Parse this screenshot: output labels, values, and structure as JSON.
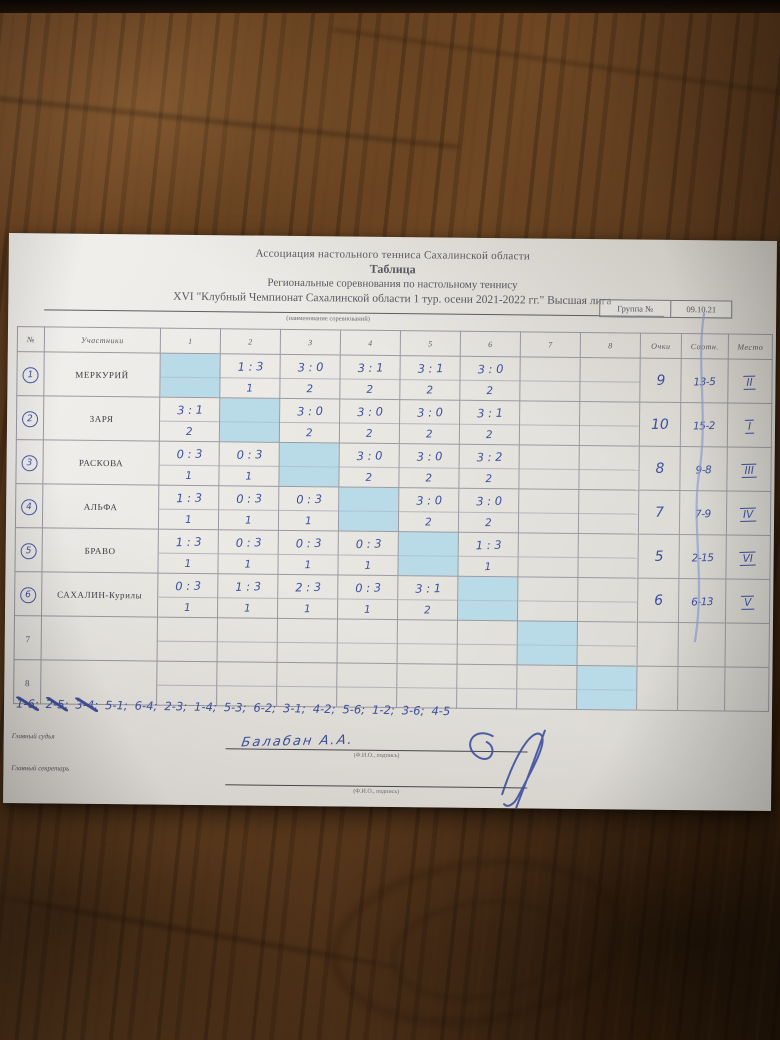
{
  "header": {
    "line1": "Ассоциация настольного тенниса Сахалинской области",
    "line2": "Таблица",
    "line3": "Региональные соревнования по настольному теннису",
    "line4": "XVI \"Клубный Чемпионат Сахалинской области 1 тур. осени 2021-2022 гг.\" Высшая лига",
    "caption": "(наименование соревнований)",
    "group_label": "Группа №",
    "group_value": "09.10.21"
  },
  "table": {
    "col_headers": [
      "№",
      "Участники",
      "1",
      "2",
      "3",
      "4",
      "5",
      "6",
      "7",
      "8",
      "Очки",
      "Соотн.",
      "Место"
    ],
    "rows": [
      {
        "num": "1",
        "circled": true,
        "name": "МЕРКУРИЙ",
        "cells": [
          {
            "diag": true
          },
          {
            "s": "1 : 3",
            "p": "1"
          },
          {
            "s": "3 : 0",
            "p": "2"
          },
          {
            "s": "3 : 1",
            "p": "2"
          },
          {
            "s": "3 : 1",
            "p": "2"
          },
          {
            "s": "3 : 0",
            "p": "2"
          },
          {},
          {}
        ],
        "points": "9",
        "ratio": "13-5",
        "place": "II"
      },
      {
        "num": "2",
        "circled": true,
        "name": "ЗАРЯ",
        "cells": [
          {
            "s": "3 : 1",
            "p": "2"
          },
          {
            "diag": true
          },
          {
            "s": "3 : 0",
            "p": "2"
          },
          {
            "s": "3 : 0",
            "p": "2"
          },
          {
            "s": "3 : 0",
            "p": "2"
          },
          {
            "s": "3 : 1",
            "p": "2"
          },
          {},
          {}
        ],
        "points": "10",
        "ratio": "15-2",
        "place": "I"
      },
      {
        "num": "3",
        "circled": true,
        "name": "РАСКОВА",
        "cells": [
          {
            "s": "0 : 3",
            "p": "1"
          },
          {
            "s": "0 : 3",
            "p": "1"
          },
          {
            "diag": true
          },
          {
            "s": "3 : 0",
            "p": "2"
          },
          {
            "s": "3 : 0",
            "p": "2"
          },
          {
            "s": "3 : 2",
            "p": "2"
          },
          {},
          {}
        ],
        "points": "8",
        "ratio": "9-8",
        "place": "III"
      },
      {
        "num": "4",
        "circled": true,
        "name": "АЛЬФА",
        "cells": [
          {
            "s": "1 : 3",
            "p": "1"
          },
          {
            "s": "0 : 3",
            "p": "1"
          },
          {
            "s": "0 : 3",
            "p": "1"
          },
          {
            "diag": true
          },
          {
            "s": "3 : 0",
            "p": "2"
          },
          {
            "s": "3 : 0",
            "p": "2"
          },
          {},
          {}
        ],
        "points": "7",
        "ratio": "7-9",
        "place": "IV"
      },
      {
        "num": "5",
        "circled": true,
        "name": "БРАВО",
        "cells": [
          {
            "s": "1 : 3",
            "p": "1"
          },
          {
            "s": "0 : 3",
            "p": "1"
          },
          {
            "s": "0 : 3",
            "p": "1"
          },
          {
            "s": "0 : 3",
            "p": "1"
          },
          {
            "diag": true
          },
          {
            "s": "1 : 3",
            "p": "1"
          },
          {},
          {}
        ],
        "points": "5",
        "ratio": "2-15",
        "place": "VI"
      },
      {
        "num": "6",
        "circled": true,
        "name": "САХАЛИН-Курилы",
        "cells": [
          {
            "s": "0 : 3",
            "p": "1"
          },
          {
            "s": "1 : 3",
            "p": "1"
          },
          {
            "s": "2 : 3",
            "p": "1"
          },
          {
            "s": "0 : 3",
            "p": "1"
          },
          {
            "s": "3 : 1",
            "p": "2"
          },
          {
            "diag": true
          },
          {},
          {}
        ],
        "points": "6",
        "ratio": "6-13",
        "place": "V"
      },
      {
        "num": "7",
        "circled": false,
        "name": "",
        "cells": [
          {},
          {},
          {},
          {},
          {},
          {},
          {
            "diag": true
          },
          {}
        ],
        "points": "",
        "ratio": "",
        "place": ""
      },
      {
        "num": "8",
        "circled": false,
        "name": "",
        "cells": [
          {},
          {},
          {},
          {},
          {},
          {},
          {},
          {
            "diag": true
          }
        ],
        "points": "",
        "ratio": "",
        "place": ""
      }
    ]
  },
  "schedule": [
    {
      "text": "1-6;",
      "struck": true
    },
    {
      "text": "2-5;",
      "struck": true
    },
    {
      "text": "3-4;",
      "struck": true
    },
    {
      "text": "5-1;",
      "struck": false
    },
    {
      "text": "6-4;",
      "struck": false
    },
    {
      "text": "2-3;",
      "struck": false
    },
    {
      "text": "1-4;",
      "struck": false
    },
    {
      "text": "5-3;",
      "struck": false
    },
    {
      "text": "6-2;",
      "struck": false
    },
    {
      "text": "3-1;",
      "struck": false
    },
    {
      "text": "4-2;",
      "struck": false
    },
    {
      "text": "5-6;",
      "struck": false
    },
    {
      "text": "1-2;",
      "struck": false
    },
    {
      "text": "3-6;",
      "struck": false
    },
    {
      "text": "4-5",
      "struck": false
    }
  ],
  "officials": {
    "judge_label": "Главный судья",
    "judge_signature": "Балабан А.А.",
    "judge_caption": "(Ф.И.О., подпись)",
    "secretary_label": "Главный секретарь",
    "secretary_caption": "(Ф.И.О., подпись)"
  },
  "colors": {
    "ink_blue": "#3d4fa3",
    "diagonal_cell_fill": "#b9dbe8",
    "paper": "#e9e7e2",
    "wood_brown": "#64401f"
  }
}
